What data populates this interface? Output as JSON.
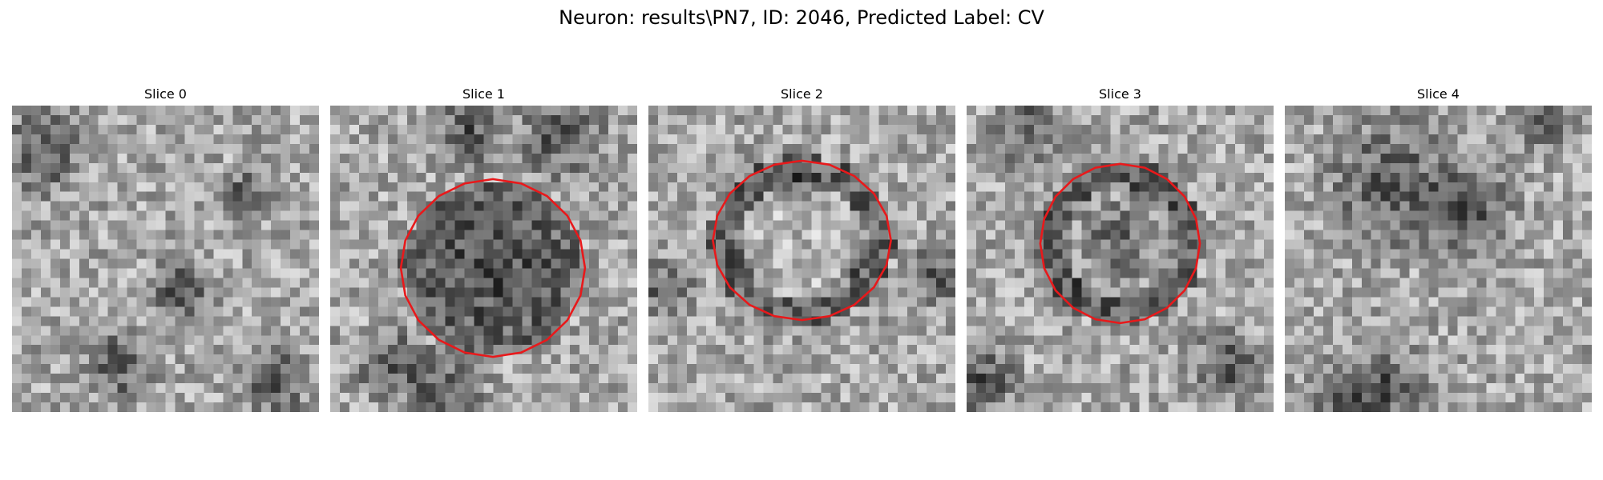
{
  "figure": {
    "title": "Neuron: results\\PN7, ID: 2046, Predicted Label: CV"
  },
  "colors": {
    "contour": "#e8191b",
    "background": "#ffffff"
  },
  "panels": [
    {
      "title": "Slice 0",
      "seed": 11,
      "dark_center": 0,
      "contour": "none",
      "dark_blobs": [
        [
          0.1,
          0.15,
          0.12
        ],
        [
          0.35,
          0.85,
          0.1
        ],
        [
          0.55,
          0.6,
          0.09
        ],
        [
          0.85,
          0.9,
          0.1
        ],
        [
          0.75,
          0.3,
          0.08
        ]
      ]
    },
    {
      "title": "Slice 1",
      "seed": 23,
      "dark_center": 1,
      "contour": "large",
      "dark_blobs": [
        [
          0.75,
          0.1,
          0.12
        ],
        [
          0.45,
          0.08,
          0.1
        ],
        [
          0.2,
          0.85,
          0.1
        ],
        [
          0.38,
          0.92,
          0.1
        ]
      ]
    },
    {
      "title": "Slice 2",
      "seed": 37,
      "dark_center": 0,
      "contour": "medium",
      "dark_blobs": [
        [
          0.05,
          0.6,
          0.08
        ],
        [
          0.95,
          0.55,
          0.08
        ],
        [
          0.5,
          0.28,
          0.05
        ]
      ]
    },
    {
      "title": "Slice 3",
      "seed": 41,
      "dark_center": 0,
      "contour": "small",
      "dark_blobs": [
        [
          0.2,
          0.08,
          0.1
        ],
        [
          0.05,
          0.9,
          0.1
        ],
        [
          0.85,
          0.85,
          0.1
        ],
        [
          0.5,
          0.45,
          0.14
        ]
      ]
    },
    {
      "title": "Slice 4",
      "seed": 53,
      "dark_center": 0,
      "contour": "none",
      "dark_blobs": [
        [
          0.35,
          0.25,
          0.18
        ],
        [
          0.6,
          0.35,
          0.12
        ],
        [
          0.2,
          0.95,
          0.1
        ],
        [
          0.35,
          0.92,
          0.1
        ],
        [
          0.85,
          0.05,
          0.08
        ]
      ]
    }
  ]
}
